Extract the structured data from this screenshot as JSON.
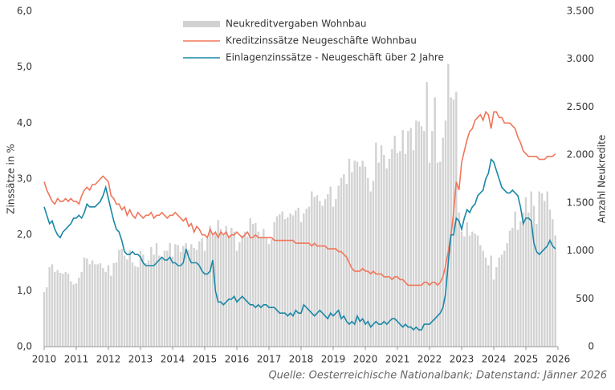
{
  "chart_data": {
    "type": "combo",
    "source": "Quelle: Oesterreichische Nationalbank; Datenstand: Jänner 2026",
    "ylabel": "Zinssätze in %",
    "y2label": "Anzahl Neukredite",
    "xlim": [
      2010,
      2026
    ],
    "xticks": [
      2010,
      2011,
      2012,
      2013,
      2014,
      2015,
      2016,
      2017,
      2018,
      2019,
      2020,
      2021,
      2022,
      2023,
      2024,
      2025,
      2026
    ],
    "ylim": [
      0,
      6
    ],
    "yticks": [
      {
        "value": 0,
        "label": "0,0"
      },
      {
        "value": 1,
        "label": "1,0"
      },
      {
        "value": 2,
        "label": "2,0"
      },
      {
        "value": 3,
        "label": "3,0"
      },
      {
        "value": 4,
        "label": "4,0"
      },
      {
        "value": 5,
        "label": "5,0"
      },
      {
        "value": 6,
        "label": "6,0"
      }
    ],
    "y2lim": [
      0,
      3500
    ],
    "y2ticks": [
      0,
      500,
      {
        "value": 1000,
        "label": "1.000"
      },
      {
        "value": 1500,
        "label": "1.500"
      },
      {
        "value": 2000,
        "label": "2.000"
      },
      {
        "value": 2500,
        "label": "2.500"
      },
      {
        "value": 3000,
        "label": "3.000"
      },
      {
        "value": 3500,
        "label": "3.500"
      }
    ],
    "x": [
      2010,
      2010.083,
      2010.167,
      2010.25,
      2010.333,
      2010.417,
      2010.5,
      2010.583,
      2010.667,
      2010.75,
      2010.833,
      2010.917,
      2011,
      2011.083,
      2011.167,
      2011.25,
      2011.333,
      2011.417,
      2011.5,
      2011.583,
      2011.667,
      2011.75,
      2011.833,
      2011.917,
      2012,
      2012.083,
      2012.167,
      2012.25,
      2012.333,
      2012.417,
      2012.5,
      2012.583,
      2012.667,
      2012.75,
      2012.833,
      2012.917,
      2013,
      2013.083,
      2013.167,
      2013.25,
      2013.333,
      2013.417,
      2013.5,
      2013.583,
      2013.667,
      2013.75,
      2013.833,
      2013.917,
      2014,
      2014.083,
      2014.167,
      2014.25,
      2014.333,
      2014.417,
      2014.5,
      2014.583,
      2014.667,
      2014.75,
      2014.833,
      2014.917,
      2015,
      2015.083,
      2015.167,
      2015.25,
      2015.333,
      2015.417,
      2015.5,
      2015.583,
      2015.667,
      2015.75,
      2015.833,
      2015.917,
      2016,
      2016.083,
      2016.167,
      2016.25,
      2016.333,
      2016.417,
      2016.5,
      2016.583,
      2016.667,
      2016.75,
      2016.833,
      2016.917,
      2017,
      2017.083,
      2017.167,
      2017.25,
      2017.333,
      2017.417,
      2017.5,
      2017.583,
      2017.667,
      2017.75,
      2017.833,
      2017.917,
      2018,
      2018.083,
      2018.167,
      2018.25,
      2018.333,
      2018.417,
      2018.5,
      2018.583,
      2018.667,
      2018.75,
      2018.833,
      2018.917,
      2019,
      2019.083,
      2019.167,
      2019.25,
      2019.333,
      2019.417,
      2019.5,
      2019.583,
      2019.667,
      2019.75,
      2019.833,
      2019.917,
      2020,
      2020.083,
      2020.167,
      2020.25,
      2020.333,
      2020.417,
      2020.5,
      2020.583,
      2020.667,
      2020.75,
      2020.833,
      2020.917,
      2021,
      2021.083,
      2021.167,
      2021.25,
      2021.333,
      2021.417,
      2021.5,
      2021.583,
      2021.667,
      2021.75,
      2021.833,
      2021.917,
      2022,
      2022.083,
      2022.167,
      2022.25,
      2022.333,
      2022.417,
      2022.5,
      2022.583,
      2022.667,
      2022.75,
      2022.833,
      2022.917,
      2023,
      2023.083,
      2023.167,
      2023.25,
      2023.333,
      2023.417,
      2023.5,
      2023.583,
      2023.667,
      2023.75,
      2023.833,
      2023.917,
      2024,
      2024.083,
      2024.167,
      2024.25,
      2024.333,
      2024.417,
      2024.5,
      2024.583,
      2024.667,
      2024.75,
      2024.833,
      2024.917,
      2025,
      2025.083,
      2025.167,
      2025.25,
      2025.333,
      2025.417,
      2025.5,
      2025.583,
      2025.667,
      2025.75,
      2025.833,
      2025.917
    ],
    "series": [
      {
        "name": "Neukreditvergaben Wohnbau",
        "type": "bar",
        "axis": "y2",
        "color": "#d2d2d2",
        "values": [
          570,
          620,
          830,
          860,
          780,
          800,
          770,
          760,
          780,
          760,
          680,
          650,
          660,
          720,
          780,
          930,
          920,
          860,
          900,
          860,
          860,
          870,
          820,
          780,
          850,
          740,
          870,
          880,
          1010,
          1020,
          950,
          910,
          1010,
          880,
          840,
          830,
          1000,
          960,
          870,
          900,
          1040,
          960,
          1080,
          950,
          920,
          1000,
          1000,
          1080,
          940,
          1070,
          1060,
          990,
          1050,
          1080,
          1010,
          1070,
          1030,
          1010,
          1100,
          1130,
          1000,
          1130,
          1260,
          1160,
          1180,
          1320,
          1230,
          1160,
          1260,
          1150,
          1240,
          1200,
          1000,
          1090,
          1160,
          1200,
          1150,
          1340,
          1280,
          1290,
          1200,
          1140,
          1230,
          1140,
          1070,
          1120,
          1300,
          1360,
          1380,
          1410,
          1330,
          1350,
          1390,
          1370,
          1420,
          1450,
          1300,
          1390,
          1440,
          1460,
          1620,
          1560,
          1580,
          1520,
          1470,
          1540,
          1590,
          1670,
          1460,
          1540,
          1680,
          1760,
          1800,
          1700,
          1960,
          1820,
          1940,
          1930,
          1880,
          1940,
          1880,
          1760,
          1620,
          1730,
          2130,
          1920,
          2100,
          2000,
          1860,
          1960,
          2060,
          2200,
          2020,
          2040,
          2260,
          2010,
          2250,
          2280,
          2050,
          2360,
          2350,
          2300,
          2250,
          2760,
          1920,
          2250,
          2600,
          1920,
          1930,
          2180,
          2360,
          2950,
          2600,
          2580,
          2660,
          1400,
          1200,
          1150,
          1300,
          1160,
          1200,
          1180,
          1160,
          1060,
          1000,
          930,
          850,
          950,
          700,
          830,
          930,
          960,
          1000,
          1080,
          1210,
          1240,
          1410,
          1220,
          1310,
          1400,
          1560,
          1400,
          1620,
          1470,
          1280,
          1620,
          1600,
          1520,
          1620,
          1430,
          1330,
          1160
        ]
      },
      {
        "name": "Kreditzinssätze Neugeschäfte Wohnbau",
        "type": "line",
        "color": "#f0765a",
        "values": [
          2.95,
          2.8,
          2.7,
          2.6,
          2.55,
          2.65,
          2.6,
          2.6,
          2.65,
          2.6,
          2.65,
          2.6,
          2.6,
          2.55,
          2.7,
          2.8,
          2.85,
          2.8,
          2.9,
          2.9,
          2.95,
          3.0,
          3.05,
          3.0,
          2.95,
          2.7,
          2.65,
          2.55,
          2.55,
          2.45,
          2.5,
          2.35,
          2.45,
          2.35,
          2.3,
          2.4,
          2.35,
          2.3,
          2.35,
          2.35,
          2.4,
          2.3,
          2.35,
          2.35,
          2.4,
          2.35,
          2.3,
          2.35,
          2.35,
          2.4,
          2.35,
          2.3,
          2.25,
          2.3,
          2.15,
          2.2,
          2.05,
          2.15,
          2.1,
          2.0,
          2.0,
          1.95,
          2.1,
          2.0,
          2.05,
          1.95,
          2.05,
          2.0,
          2.05,
          1.95,
          2.0,
          2.0,
          2.05,
          2.0,
          1.95,
          2.0,
          2.05,
          1.95,
          1.95,
          2.0,
          1.95,
          1.95,
          1.95,
          1.95,
          1.95,
          1.95,
          1.9,
          1.9,
          1.9,
          1.9,
          1.9,
          1.9,
          1.9,
          1.9,
          1.85,
          1.85,
          1.85,
          1.85,
          1.85,
          1.85,
          1.8,
          1.85,
          1.8,
          1.8,
          1.8,
          1.8,
          1.75,
          1.75,
          1.75,
          1.75,
          1.7,
          1.7,
          1.65,
          1.6,
          1.5,
          1.4,
          1.35,
          1.35,
          1.35,
          1.4,
          1.35,
          1.35,
          1.3,
          1.35,
          1.3,
          1.3,
          1.3,
          1.25,
          1.25,
          1.25,
          1.2,
          1.25,
          1.25,
          1.2,
          1.2,
          1.15,
          1.1,
          1.1,
          1.1,
          1.1,
          1.1,
          1.1,
          1.15,
          1.15,
          1.1,
          1.15,
          1.15,
          1.1,
          1.15,
          1.25,
          1.45,
          1.7,
          2.0,
          2.4,
          2.95,
          2.8,
          3.3,
          3.5,
          3.7,
          3.85,
          3.9,
          4.05,
          4.1,
          4.15,
          4.05,
          4.2,
          4.15,
          3.9,
          4.2,
          4.2,
          4.1,
          4.1,
          4.0,
          4.0,
          4.0,
          3.95,
          3.9,
          3.75,
          3.65,
          3.5,
          3.45,
          3.4,
          3.4,
          3.4,
          3.4,
          3.35,
          3.35,
          3.35,
          3.4,
          3.4,
          3.4,
          3.45
        ]
      },
      {
        "name": "Einlagenzinssätze - Neugeschäft über 2 Jahre",
        "type": "line",
        "color": "#1a87a6",
        "values": [
          2.5,
          2.35,
          2.2,
          2.25,
          2.1,
          2.0,
          1.95,
          2.05,
          2.1,
          2.15,
          2.2,
          2.3,
          2.3,
          2.35,
          2.3,
          2.4,
          2.55,
          2.5,
          2.5,
          2.5,
          2.55,
          2.6,
          2.7,
          2.85,
          2.65,
          2.45,
          2.25,
          2.1,
          2.05,
          1.9,
          1.7,
          1.65,
          1.65,
          1.7,
          1.65,
          1.65,
          1.6,
          1.5,
          1.45,
          1.45,
          1.45,
          1.45,
          1.5,
          1.55,
          1.6,
          1.55,
          1.55,
          1.6,
          1.5,
          1.5,
          1.45,
          1.45,
          1.5,
          1.75,
          1.6,
          1.5,
          1.5,
          1.5,
          1.45,
          1.35,
          1.3,
          1.3,
          1.35,
          1.55,
          1.0,
          0.8,
          0.8,
          0.75,
          0.8,
          0.85,
          0.85,
          0.9,
          0.8,
          0.85,
          0.9,
          0.85,
          0.8,
          0.75,
          0.75,
          0.7,
          0.75,
          0.7,
          0.75,
          0.75,
          0.7,
          0.7,
          0.7,
          0.65,
          0.6,
          0.6,
          0.6,
          0.55,
          0.6,
          0.55,
          0.65,
          0.6,
          0.6,
          0.75,
          0.7,
          0.65,
          0.6,
          0.55,
          0.6,
          0.65,
          0.6,
          0.55,
          0.5,
          0.6,
          0.55,
          0.6,
          0.65,
          0.5,
          0.55,
          0.45,
          0.4,
          0.45,
          0.4,
          0.55,
          0.45,
          0.5,
          0.4,
          0.45,
          0.35,
          0.4,
          0.45,
          0.4,
          0.4,
          0.45,
          0.4,
          0.45,
          0.5,
          0.5,
          0.45,
          0.4,
          0.35,
          0.4,
          0.35,
          0.35,
          0.3,
          0.35,
          0.3,
          0.3,
          0.4,
          0.4,
          0.4,
          0.45,
          0.5,
          0.55,
          0.6,
          0.7,
          0.95,
          1.5,
          2.0,
          2.0,
          2.3,
          2.25,
          2.1,
          2.3,
          2.45,
          2.4,
          2.5,
          2.55,
          2.7,
          2.75,
          2.8,
          3.0,
          3.1,
          3.35,
          3.3,
          3.15,
          3.0,
          2.85,
          2.8,
          2.75,
          2.75,
          2.8,
          2.75,
          2.7,
          2.5,
          2.2,
          2.3,
          2.3,
          2.25,
          1.85,
          1.7,
          1.65,
          1.7,
          1.75,
          1.8,
          1.9,
          1.8,
          1.75
        ]
      }
    ]
  }
}
